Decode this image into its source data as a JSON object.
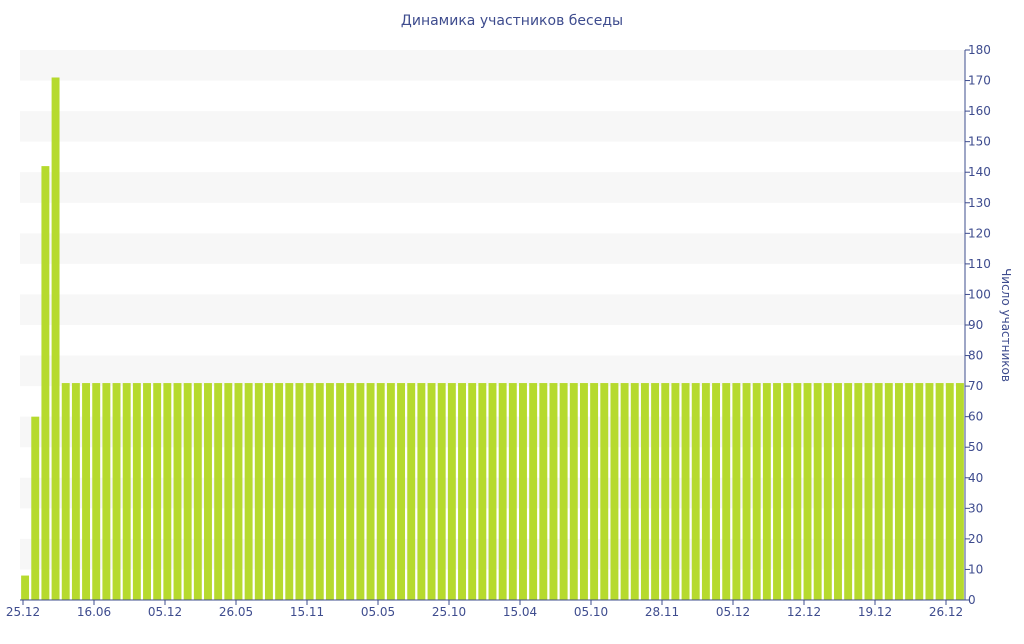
{
  "chart_data": {
    "type": "bar",
    "title": "Динамика участников беседы",
    "xlabel": "",
    "ylabel": "Число участников",
    "ylim": [
      0,
      180
    ],
    "yticks": [
      0,
      10,
      20,
      30,
      40,
      50,
      60,
      70,
      80,
      90,
      100,
      110,
      120,
      130,
      140,
      150,
      160,
      170,
      180
    ],
    "xticks": [
      "25.12",
      "16.06",
      "05.12",
      "26.05",
      "15.11",
      "05.05",
      "25.10",
      "15.04",
      "05.10",
      "28.11",
      "05.12",
      "12.12",
      "19.12",
      "26.12"
    ],
    "grid": "horizontal-bands",
    "yaxis_side": "right",
    "bar_color": "#b6da2e",
    "band_color": "#f7f7f7",
    "text_color": "#3e4c8e",
    "values": [
      8,
      60,
      142,
      171,
      71,
      71,
      71,
      71,
      71,
      71,
      71,
      71,
      71,
      71,
      71,
      71,
      71,
      71,
      71,
      71,
      71,
      71,
      71,
      71,
      71,
      71,
      71,
      71,
      71,
      71,
      71,
      71,
      71,
      71,
      71,
      71,
      71,
      71,
      71,
      71,
      71,
      71,
      71,
      71,
      71,
      71,
      71,
      71,
      71,
      71,
      71,
      71,
      71,
      71,
      71,
      71,
      71,
      71,
      71,
      71,
      71,
      71,
      71,
      71,
      71,
      71,
      71,
      71,
      71,
      71,
      71,
      71,
      71,
      71,
      71,
      71,
      71,
      71,
      71,
      71,
      71,
      71,
      71,
      71,
      71,
      71,
      71,
      71,
      71,
      71,
      71,
      71,
      71
    ]
  }
}
